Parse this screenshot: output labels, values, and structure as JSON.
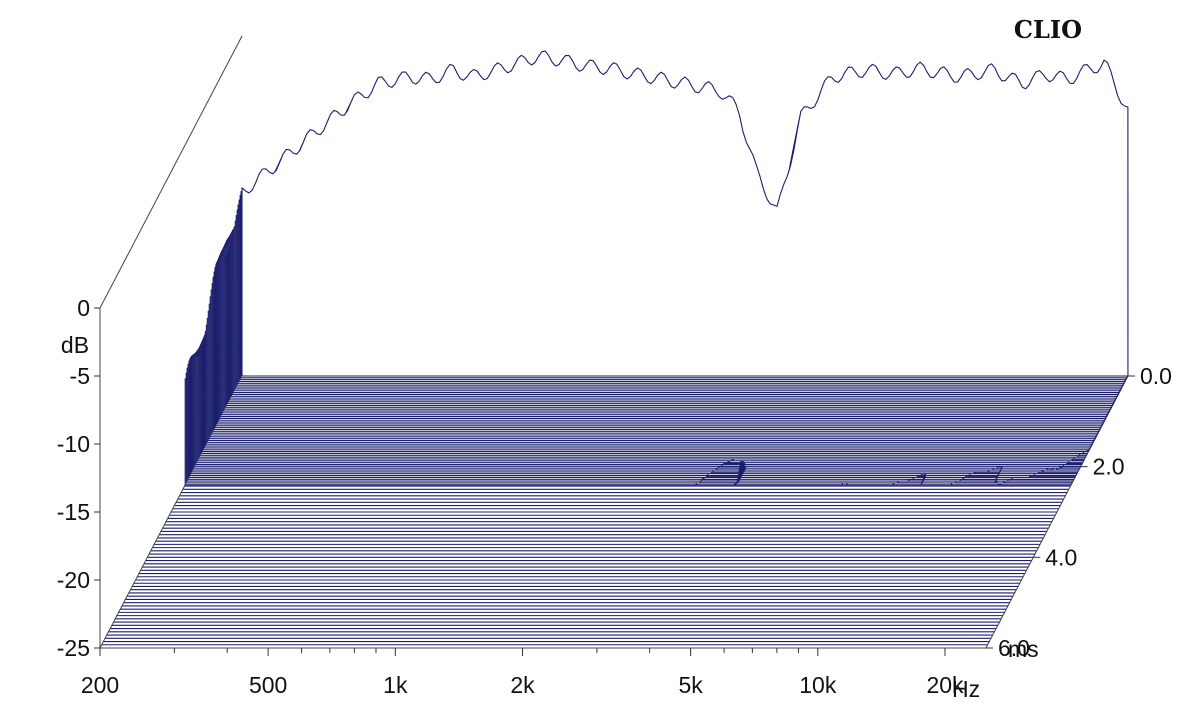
{
  "chart_data": {
    "type": "waterfall",
    "brand_label": "CLIO",
    "xlabel": "Hz",
    "ylabel": "dB",
    "zlabel": "ms",
    "x_scale": "log",
    "xlim": [
      200,
      25000
    ],
    "ylim": [
      -25,
      0
    ],
    "zlim": [
      0.0,
      6.0
    ],
    "x_ticks": [
      {
        "value": 200,
        "label": "200"
      },
      {
        "value": 500,
        "label": "500"
      },
      {
        "value": 1000,
        "label": "1k"
      },
      {
        "value": 2000,
        "label": "2k"
      },
      {
        "value": 5000,
        "label": "5k"
      },
      {
        "value": 10000,
        "label": "10k"
      },
      {
        "value": 20000,
        "label": "20k"
      }
    ],
    "y_ticks": [
      {
        "value": 0,
        "label": "0"
      },
      {
        "value": -5,
        "label": "-5"
      },
      {
        "value": -10,
        "label": "-10"
      },
      {
        "value": -15,
        "label": "-15"
      },
      {
        "value": -20,
        "label": "-20"
      },
      {
        "value": -25,
        "label": "-25"
      }
    ],
    "z_ticks": [
      {
        "value": 0.0,
        "label": "0.0"
      },
      {
        "value": 2.0,
        "label": "2.0"
      },
      {
        "value": 4.0,
        "label": "4.0"
      },
      {
        "value": 6.0,
        "label": "6.0"
      }
    ],
    "line_color": "#1c1f6e",
    "background": "#ffffff",
    "slice_count": 60,
    "initial_response": {
      "freq": [
        200,
        240,
        300,
        360,
        420,
        500,
        560,
        630,
        700,
        800,
        900,
        1000,
        1150,
        1300,
        1500,
        1700,
        2000,
        2300,
        2700,
        3000,
        3300,
        3700,
        4200,
        5000,
        6000,
        7000,
        8000,
        10000,
        12000,
        14000,
        16000,
        18000,
        20000,
        22000,
        25000
      ],
      "db": [
        -11.5,
        -9.5,
        -7,
        -5,
        -3.5,
        -3,
        -3.2,
        -2.5,
        -3,
        -2.5,
        -2,
        -1.5,
        -1.8,
        -2.2,
        -2.4,
        -2.8,
        -3.2,
        -3.6,
        -4,
        -5.5,
        -10,
        -13,
        -6,
        -3,
        -2.5,
        -2.8,
        -2.4,
        -3,
        -2.5,
        -3.5,
        -2.8,
        -3.2,
        -2.5,
        -2.0,
        -5.5
      ]
    }
  }
}
